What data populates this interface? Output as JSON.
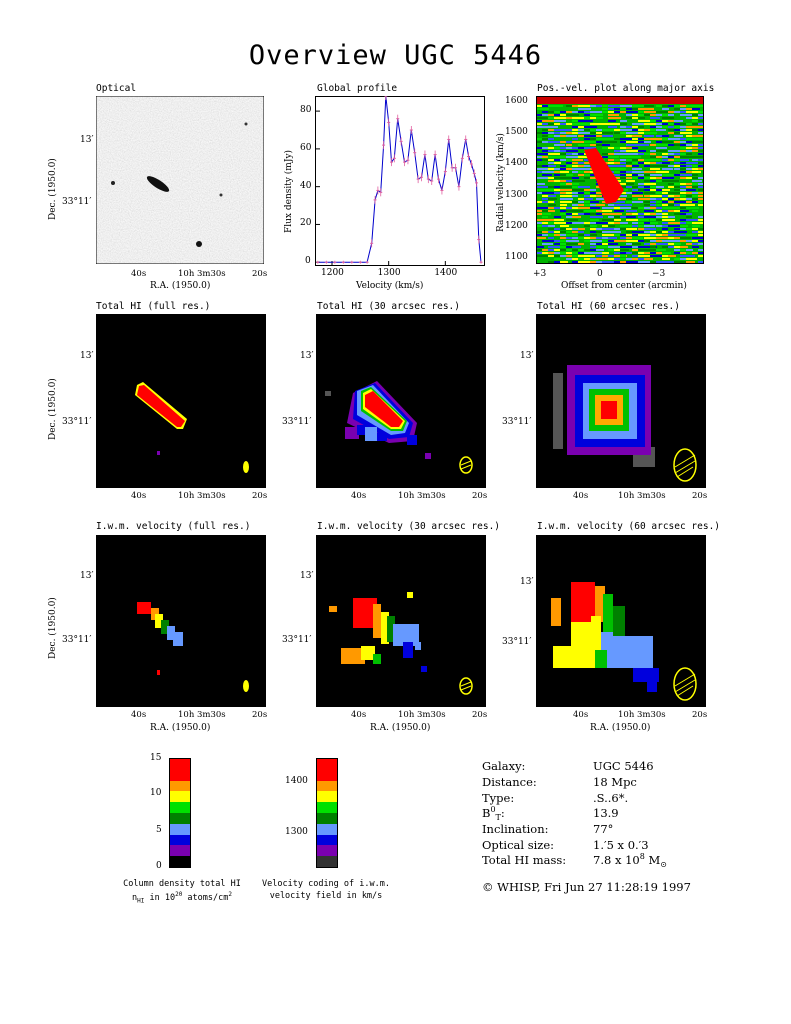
{
  "title": "Overview UGC 5446",
  "panels": {
    "optical": "Optical",
    "global_profile": "Global profile",
    "pv": "Pos.-vel. plot along major axis",
    "hi_full": "Total HI (full res.)",
    "hi_30": "Total HI (30 arcsec res.)",
    "hi_60": "Total HI (60 arcsec res.)",
    "vel_full": "I.w.m. velocity (full res.)",
    "vel_30": "I.w.m. velocity (30 arcsec res.)",
    "vel_60": "I.w.m. velocity (60 arcsec res.)"
  },
  "axes": {
    "ra_label": "R.A. (1950.0)",
    "dec_label": "Dec. (1950.0)",
    "ra_ticks": [
      "40s",
      "10h 3m30s",
      "20s"
    ],
    "dec_ticks": [
      "13′",
      "33°11′"
    ],
    "flux_label": "Flux density (mJy)",
    "velocity_label": "Velocity (km/s)",
    "radial_label": "Radial velocity (km/s)",
    "offset_label": "Offset from center (arcmin)"
  },
  "chart_data": [
    {
      "type": "line",
      "title": "Global profile",
      "xlabel": "Velocity (km/s)",
      "ylabel": "Flux density (mJy)",
      "xlim": [
        1170,
        1470
      ],
      "ylim": [
        -2,
        88
      ],
      "xticks": [
        1200,
        1300,
        1400
      ],
      "yticks": [
        0,
        20,
        40,
        60,
        80
      ],
      "x": [
        1175,
        1190,
        1205,
        1220,
        1235,
        1250,
        1262,
        1270,
        1276,
        1281,
        1286,
        1291,
        1295,
        1300,
        1305,
        1310,
        1316,
        1322,
        1328,
        1334,
        1340,
        1346,
        1352,
        1358,
        1364,
        1370,
        1376,
        1382,
        1388,
        1394,
        1400,
        1406,
        1412,
        1418,
        1424,
        1430,
        1436,
        1441,
        1446,
        1451,
        1455,
        1459,
        1463
      ],
      "y": [
        0,
        0,
        0,
        0,
        0,
        0,
        0,
        10,
        33,
        38,
        37,
        62,
        88,
        74,
        53,
        55,
        76,
        64,
        53,
        54,
        70,
        58,
        44,
        45,
        57,
        44,
        43,
        57,
        44,
        38,
        48,
        65,
        50,
        50,
        40,
        55,
        65,
        56,
        52,
        47,
        42,
        12,
        0
      ]
    },
    {
      "type": "heatmap",
      "title": "Pos.-vel. plot along major axis",
      "xlabel": "Offset from center (arcmin)",
      "ylabel": "Radial velocity (km/s)",
      "xticks": [
        "+3",
        "0",
        "−3"
      ],
      "yticks": [
        1100,
        1200,
        1300,
        1400,
        1500,
        1600
      ]
    }
  ],
  "colorbars": {
    "density": {
      "ticks": [
        "15",
        "10",
        "5",
        "0"
      ],
      "caption1": "Column density total HI",
      "caption2": "nHI in 1020 atoms/cm2"
    },
    "velocity": {
      "ticks": [
        "1400",
        "1300"
      ],
      "caption1": "Velocity coding of i.w.m.",
      "caption2": "velocity field in km/s"
    }
  },
  "info": {
    "galaxy_k": "Galaxy:",
    "galaxy_v": "UGC 5446",
    "distance_k": "Distance:",
    "distance_v": "18 Mpc",
    "type_k": "Type:",
    "type_v": ".S..6*.",
    "bt_k": "B0T:",
    "bt_v": "13.9",
    "incl_k": "Inclination:",
    "incl_v": "77°",
    "size_k": "Optical size:",
    "size_v": "1.′5 x 0.′3",
    "mass_k": "Total HI mass:",
    "mass_v": "7.8 x 108 M⊙"
  },
  "footer": "© WHISP, Fri Jun 27 11:28:19 1997",
  "colors": {
    "red": "#ff0000",
    "orange": "#ff9900",
    "yellow": "#ffff00",
    "green": "#00e000",
    "dgreen": "#008000",
    "lblue": "#6699ff",
    "blue": "#0000dd",
    "purple": "#7a00b0",
    "black": "#000000"
  }
}
